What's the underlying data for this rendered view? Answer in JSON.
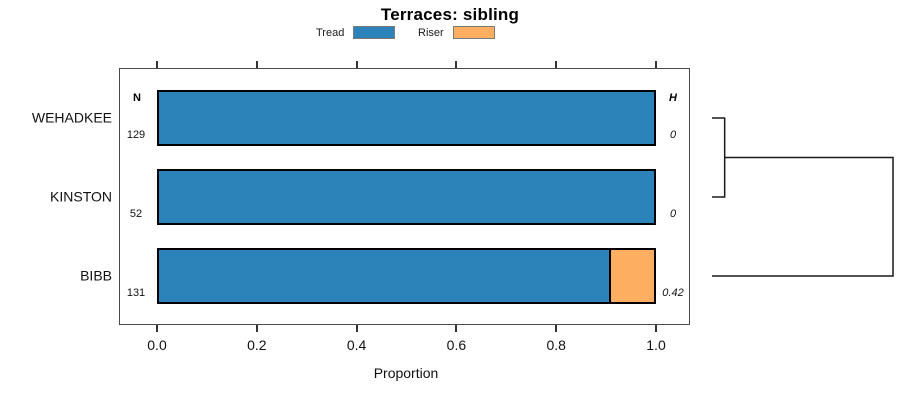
{
  "chart_data": {
    "type": "bar",
    "orientation": "horizontal_stacked",
    "title": "Terraces: sibling",
    "xlabel": "Proportion",
    "xlim": [
      0,
      1
    ],
    "x_ticks": [
      "0.0",
      "0.2",
      "0.4",
      "0.6",
      "0.8",
      "1.0"
    ],
    "grid": false,
    "legend_position": "top",
    "categories": [
      "WEHADKEE",
      "KINSTON",
      "BIBB"
    ],
    "series": [
      {
        "name": "Tread",
        "color": "#2B83BA",
        "values": [
          1.0,
          1.0,
          0.91
        ]
      },
      {
        "name": "Riser",
        "color": "#FDAE61",
        "values": [
          0.0,
          0.0,
          0.09
        ]
      }
    ],
    "n_header": "N",
    "n_values": [
      "129",
      "52",
      "131"
    ],
    "h_header": "H",
    "h_values": [
      "0",
      "0",
      "0.42"
    ],
    "bar_border_color": "#000000",
    "dendrogram": {
      "axis": "right",
      "merges": [
        {
          "members": [
            0,
            1
          ],
          "height": 0.07
        },
        {
          "members": [
            "m0",
            2
          ],
          "height": 1.0
        }
      ]
    }
  }
}
